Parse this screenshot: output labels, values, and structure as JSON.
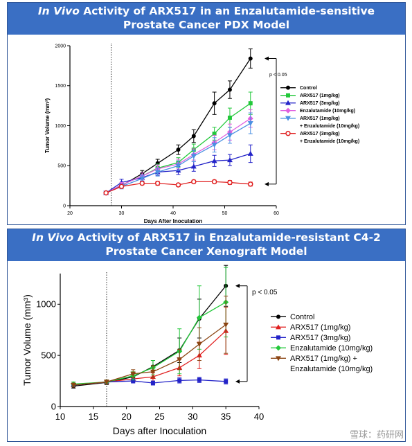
{
  "chart_data": [
    {
      "type": "line",
      "title_prefix": "In Vivo",
      "title_rest": " Activity of ARX517 in an Enzalutamide-sensitive Prostate Cancer PDX Model",
      "xlabel": "Days After Inoculation",
      "ylabel": "Tumor Volume (mm³)",
      "xlim": [
        20,
        60
      ],
      "ylim": [
        0,
        2000
      ],
      "xticks": [
        20,
        30,
        40,
        50,
        60
      ],
      "yticks": [
        0,
        500,
        1000,
        1500,
        2000
      ],
      "dotted_line_x": 28,
      "annotation": "p < 0.05",
      "legend_position": "right",
      "series": [
        {
          "name": "Control",
          "color": "#000000",
          "marker": "circle",
          "x": [
            27,
            30,
            34,
            37,
            41,
            44,
            48,
            51,
            55
          ],
          "values": [
            160,
            250,
            400,
            530,
            700,
            870,
            1280,
            1450,
            1840
          ],
          "err": [
            20,
            30,
            40,
            50,
            60,
            80,
            140,
            110,
            120
          ]
        },
        {
          "name": "ARX517 (1mg/kg)",
          "color": "#22c83a",
          "marker": "square",
          "x": [
            27,
            30,
            34,
            37,
            41,
            44,
            48,
            51,
            55
          ],
          "values": [
            160,
            260,
            370,
            470,
            540,
            700,
            900,
            1100,
            1280
          ],
          "err": [
            20,
            30,
            40,
            50,
            60,
            70,
            80,
            120,
            140
          ]
        },
        {
          "name": "ARX517 (3mg/kg)",
          "color": "#2323c8",
          "marker": "triangle",
          "x": [
            27,
            30,
            34,
            37,
            41,
            44,
            48,
            51,
            55
          ],
          "values": [
            160,
            290,
            350,
            420,
            440,
            490,
            560,
            570,
            650
          ],
          "err": [
            20,
            40,
            40,
            40,
            50,
            60,
            70,
            70,
            110
          ]
        },
        {
          "name": "Enzalutamide (10mg/kg)",
          "color": "#e060e0",
          "marker": "diamond",
          "x": [
            27,
            30,
            34,
            37,
            41,
            44,
            48,
            51,
            55
          ],
          "values": [
            160,
            260,
            370,
            460,
            520,
            640,
            790,
            920,
            1090
          ],
          "err": [
            20,
            30,
            40,
            50,
            60,
            70,
            90,
            100,
            110
          ]
        },
        {
          "name": "ARX517 (1mg/kg) + Enzalutamide (10mg/kg)",
          "color": "#4a90e2",
          "marker": "triangle-down",
          "x": [
            27,
            30,
            34,
            37,
            41,
            44,
            48,
            51,
            55
          ],
          "values": [
            160,
            240,
            340,
            420,
            500,
            620,
            760,
            880,
            1030
          ],
          "err": [
            20,
            30,
            40,
            50,
            60,
            70,
            90,
            100,
            130
          ]
        },
        {
          "name": "ARX517 (3mg/kg) + Enzalutamide (10mg/kg)",
          "color": "#e02020",
          "marker": "circle-open",
          "x": [
            27,
            30,
            34,
            37,
            41,
            44,
            48,
            51,
            55
          ],
          "values": [
            160,
            240,
            280,
            280,
            260,
            300,
            300,
            290,
            270
          ],
          "err": [
            15,
            20,
            20,
            25,
            20,
            20,
            20,
            25,
            25
          ]
        }
      ]
    },
    {
      "type": "line",
      "title_prefix": "In Vivo",
      "title_rest": " Activity of ARX517 in Enzalutamide-resistant C4-2 Prostate Cancer Xenograft Model",
      "xlabel": "Days after Inoculation",
      "ylabel": "Tumor Volume (mm³)",
      "xlim": [
        10,
        40
      ],
      "ylim": [
        0,
        1300
      ],
      "xticks": [
        10,
        15,
        20,
        25,
        30,
        35,
        40
      ],
      "yticks": [
        0,
        500,
        1000
      ],
      "dotted_line_x": 17,
      "annotation": "p < 0.05",
      "legend_position": "right",
      "series": [
        {
          "name": "Control",
          "color": "#000000",
          "marker": "circle",
          "x": [
            12,
            17,
            21,
            24,
            28,
            31,
            35
          ],
          "values": [
            200,
            235,
            290,
            390,
            550,
            860,
            1180
          ],
          "err": [
            20,
            20,
            30,
            60,
            120,
            190,
            200
          ]
        },
        {
          "name": "ARX517 (1mg/kg)",
          "color": "#e02020",
          "marker": "triangle",
          "x": [
            12,
            17,
            21,
            24,
            28,
            31,
            35
          ],
          "values": [
            210,
            240,
            270,
            290,
            380,
            500,
            740
          ],
          "err": [
            20,
            20,
            30,
            40,
            80,
            130,
            230
          ]
        },
        {
          "name": "ARX517 (3mg/kg)",
          "color": "#2323c8",
          "marker": "square",
          "x": [
            12,
            17,
            21,
            24,
            28,
            31,
            35
          ],
          "values": [
            210,
            240,
            250,
            230,
            255,
            260,
            245
          ],
          "err": [
            20,
            20,
            20,
            20,
            25,
            25,
            25
          ]
        },
        {
          "name": "Enzalutamide (10mg/kg)",
          "color": "#22c83a",
          "marker": "diamond",
          "x": [
            12,
            17,
            21,
            24,
            28,
            31,
            35
          ],
          "values": [
            220,
            240,
            300,
            380,
            540,
            870,
            1020
          ],
          "err": [
            20,
            20,
            40,
            70,
            220,
            310,
            340
          ]
        },
        {
          "name": "ARX517 (1mg/kg) + Enzalutamide (10mg/kg)",
          "color": "#8b4513",
          "marker": "triangle-down",
          "x": [
            12,
            17,
            21,
            24,
            28,
            31,
            35
          ],
          "values": [
            210,
            240,
            320,
            340,
            460,
            610,
            800
          ],
          "err": [
            20,
            20,
            40,
            60,
            100,
            160,
            280
          ]
        }
      ]
    }
  ],
  "legends": [
    [
      "Control",
      "ARX517 (1mg/kg)",
      "ARX517 (3mg/kg)",
      "Enzalutamide (10mg/kg)",
      "ARX517 (1mg/kg)",
      "+ Enzalutamide (10mg/kg)",
      "ARX517 (3mg/kg)",
      "+ Enzalutamide (10mg/kg)"
    ],
    [
      "Control",
      "ARX517 (1mg/kg)",
      "ARX517 (3mg/kg)",
      "Enzalutamide (10mg/kg)",
      "ARX517 (1mg/kg) +",
      "Enzalutamide (10mg/kg)"
    ]
  ],
  "watermark": "雪球：药研网"
}
